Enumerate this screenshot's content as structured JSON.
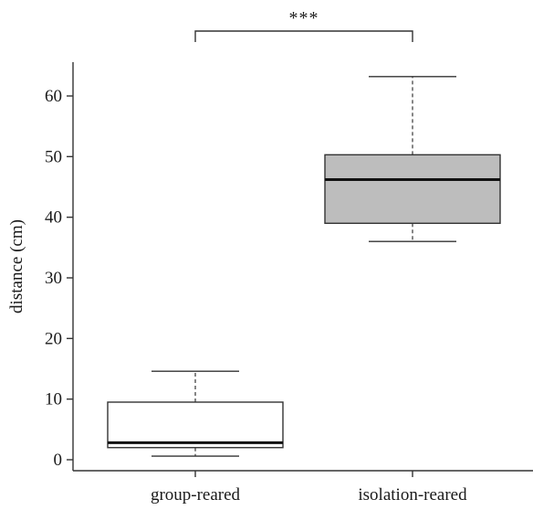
{
  "chart_data": {
    "type": "boxplot",
    "title": "",
    "xlabel": "",
    "ylabel": "distance (cm)",
    "ylim": [
      -1.5,
      66
    ],
    "yticks": [
      0,
      10,
      20,
      30,
      40,
      50,
      60
    ],
    "categories": [
      "group-reared",
      "isolation-reared"
    ],
    "boxes": [
      {
        "category": "group-reared",
        "whisker_low": 0.6,
        "q1": 2.0,
        "median": 2.8,
        "q3": 9.5,
        "whisker_high": 14.6,
        "fill": "#ffffff"
      },
      {
        "category": "isolation-reared",
        "whisker_low": 36.0,
        "q1": 39.0,
        "median": 46.2,
        "q3": 50.3,
        "whisker_high": 63.2,
        "fill": "#bdbdbd"
      }
    ],
    "significance": {
      "label": "***",
      "between": [
        "group-reared",
        "isolation-reared"
      ]
    },
    "grid": false,
    "legend": "none"
  }
}
